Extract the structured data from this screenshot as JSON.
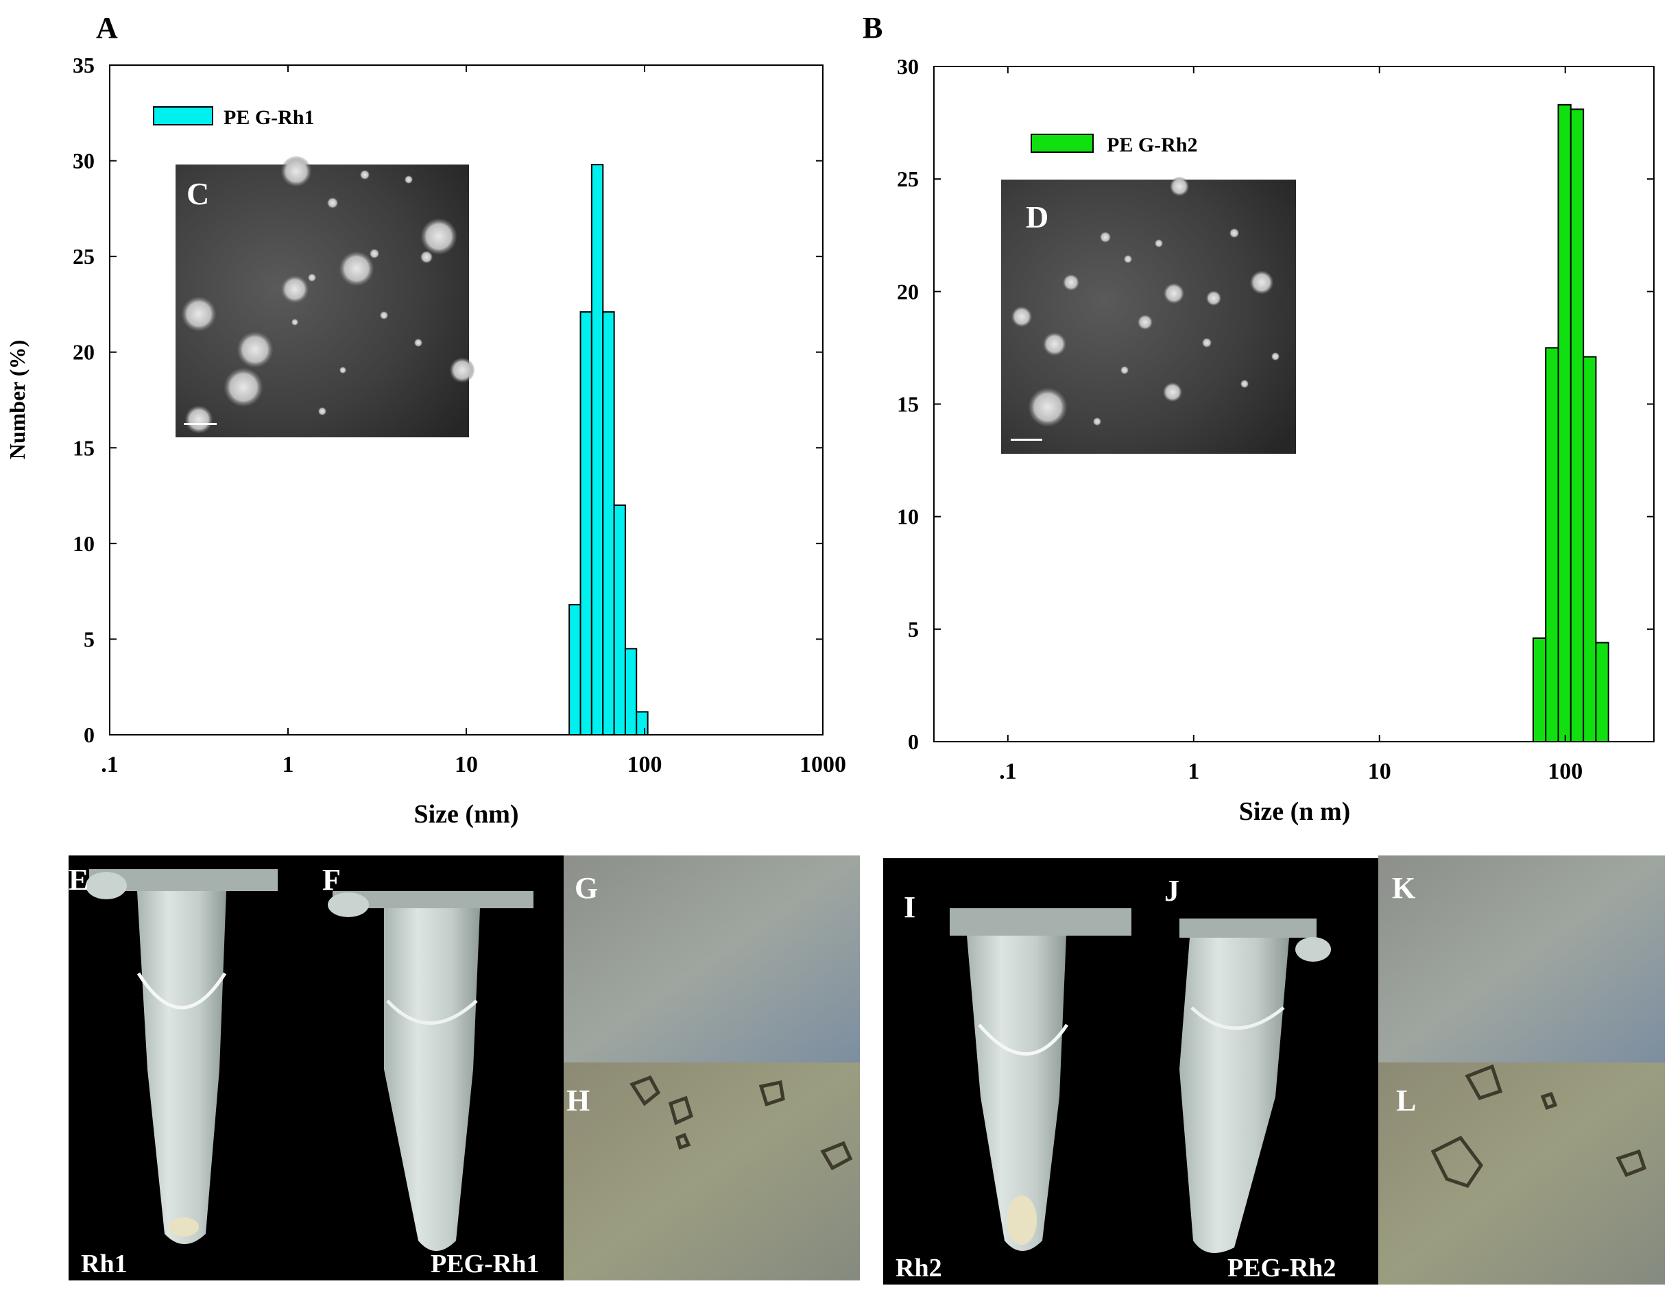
{
  "panels": {
    "A": "A",
    "B": "B",
    "C": "C",
    "D": "D",
    "E": "E",
    "F": "F",
    "G": "G",
    "H": "H",
    "I": "I",
    "J": "J",
    "K": "K",
    "L": "L"
  },
  "photo_captions": {
    "rh1": "Rh1",
    "peg_rh1": "PEG-Rh1",
    "rh2": "Rh2",
    "peg_rh2": "PEG-Rh2"
  },
  "colors": {
    "rh1_bar": "#00f0f0",
    "rh2_bar": "#10e010",
    "photo_bg": "#000000"
  },
  "chart_data": [
    {
      "type": "bar",
      "panel": "A",
      "xlabel": "Size (nm)",
      "ylabel": "Number (%)",
      "x_scale": "log",
      "xlim": [
        0.1,
        1000
      ],
      "ylim": [
        0,
        35
      ],
      "x_ticks": [
        ".1",
        "1",
        "10",
        "100",
        "1000"
      ],
      "y_ticks": [
        "0",
        "5",
        "10",
        "15",
        "20",
        "25",
        "30",
        "35"
      ],
      "legend_position": "top-left",
      "series": [
        {
          "name": "PE G-Rh1",
          "color": "#00f0f0",
          "bins": [
            {
              "x0": 37.8,
              "x1": 43.7,
              "value": 6.8
            },
            {
              "x0": 43.7,
              "x1": 50.5,
              "value": 22.1
            },
            {
              "x0": 50.5,
              "x1": 58.4,
              "value": 29.8
            },
            {
              "x0": 58.4,
              "x1": 67.5,
              "value": 22.1
            },
            {
              "x0": 67.5,
              "x1": 78.0,
              "value": 12.0
            },
            {
              "x0": 78.0,
              "x1": 90.1,
              "value": 4.5
            },
            {
              "x0": 90.1,
              "x1": 104.2,
              "value": 1.2
            }
          ]
        }
      ]
    },
    {
      "type": "bar",
      "panel": "B",
      "xlabel": "Size (n m)",
      "ylabel": "",
      "x_scale": "log",
      "xlim": [
        0.04,
        300
      ],
      "ylim": [
        0,
        30
      ],
      "x_ticks": [
        ".1",
        "1",
        "10",
        "100"
      ],
      "y_ticks": [
        "0",
        "5",
        "10",
        "15",
        "20",
        "25",
        "30"
      ],
      "legend_position": "top-left",
      "series": [
        {
          "name": "PE G-Rh2",
          "color": "#10e010",
          "bins": [
            {
              "x0": 67.2,
              "x1": 78.5,
              "value": 4.6
            },
            {
              "x0": 78.5,
              "x1": 91.7,
              "value": 17.5
            },
            {
              "x0": 91.7,
              "x1": 107.1,
              "value": 28.3
            },
            {
              "x0": 107.1,
              "x1": 125.2,
              "value": 28.1
            },
            {
              "x0": 125.2,
              "x1": 146.2,
              "value": 17.1
            },
            {
              "x0": 146.2,
              "x1": 170.8,
              "value": 4.4
            }
          ]
        }
      ]
    }
  ]
}
